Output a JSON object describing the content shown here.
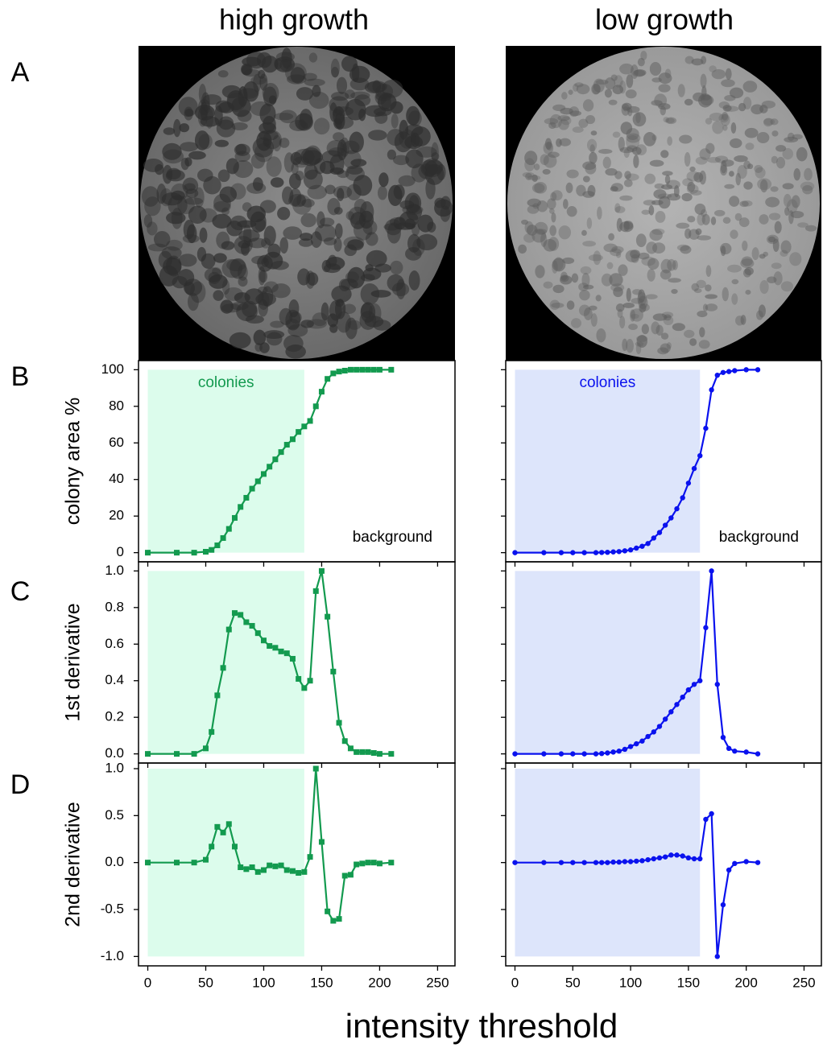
{
  "header": {
    "columns": [
      "high growth",
      "low growth"
    ],
    "panels": [
      "A",
      "B",
      "C",
      "D"
    ],
    "xlabel": "intensity threshold"
  },
  "chart_data": [
    {
      "type": "line",
      "ylabel": "colony area  %",
      "xlim": [
        -8,
        265
      ],
      "ylim": [
        -5,
        105
      ],
      "xticks": [
        0,
        50,
        100,
        150,
        200,
        250
      ],
      "yticks": [
        0,
        20,
        40,
        60,
        80,
        100
      ],
      "xtick_labels": false,
      "ytick_labels": true,
      "marker": "square",
      "shade": {
        "x": [
          0,
          135
        ],
        "y": [
          0,
          100
        ],
        "color": "#dcfcec"
      },
      "shade_label": "colonies",
      "background_label": "background",
      "x": [
        0,
        25,
        40,
        50,
        55,
        60,
        65,
        70,
        75,
        80,
        85,
        90,
        95,
        100,
        105,
        110,
        115,
        120,
        125,
        130,
        135,
        140,
        145,
        150,
        155,
        160,
        165,
        170,
        175,
        180,
        185,
        190,
        195,
        200,
        210
      ],
      "series": [
        {
          "color": "#139a4f",
          "values": [
            0,
            0,
            0,
            0.5,
            1.5,
            4,
            8,
            13,
            19,
            25,
            30,
            35,
            39,
            43,
            47,
            51,
            55,
            59,
            62,
            66,
            69,
            72,
            80,
            88,
            95,
            98,
            99,
            99.5,
            100,
            100,
            100,
            100,
            100,
            100,
            100
          ]
        }
      ]
    },
    {
      "type": "line",
      "xlim": [
        -8,
        265
      ],
      "ylim": [
        -5,
        105
      ],
      "xticks": [
        0,
        50,
        100,
        150,
        200,
        250
      ],
      "yticks": [
        0,
        20,
        40,
        60,
        80,
        100
      ],
      "xtick_labels": false,
      "ytick_labels": false,
      "marker": "circle",
      "shade": {
        "x": [
          0,
          160
        ],
        "y": [
          0,
          100
        ],
        "color": "#dde5fb"
      },
      "shade_label": "colonies",
      "background_label": "background",
      "x": [
        0,
        25,
        40,
        50,
        60,
        70,
        75,
        80,
        85,
        90,
        95,
        100,
        105,
        110,
        115,
        120,
        125,
        130,
        135,
        140,
        145,
        150,
        155,
        160,
        165,
        170,
        175,
        180,
        185,
        190,
        200,
        210
      ],
      "series": [
        {
          "color": "#0a12ee",
          "values": [
            0,
            0,
            0,
            0,
            0,
            0,
            0.1,
            0.2,
            0.4,
            0.6,
            1,
            1.5,
            2.5,
            3.5,
            5,
            8,
            11,
            15,
            19,
            24,
            30,
            38,
            46,
            53,
            68,
            89,
            97,
            98.5,
            99,
            99.5,
            100,
            100
          ]
        }
      ]
    },
    {
      "type": "line",
      "ylabel": "1st derivative",
      "xlim": [
        -8,
        265
      ],
      "ylim": [
        -0.05,
        1.05
      ],
      "xticks": [
        0,
        50,
        100,
        150,
        200,
        250
      ],
      "yticks": [
        {
          "value": 0,
          "label": "0.0"
        },
        0.2,
        0.4,
        0.6,
        0.8,
        {
          "value": 1,
          "label": "1.0"
        }
      ],
      "xtick_labels": false,
      "ytick_labels": true,
      "marker": "square",
      "shade": {
        "x": [
          0,
          135
        ],
        "y": [
          0,
          1
        ],
        "color": "#dcfcec"
      },
      "x": [
        0,
        25,
        40,
        50,
        55,
        60,
        65,
        70,
        75,
        80,
        85,
        90,
        95,
        100,
        105,
        110,
        115,
        120,
        125,
        130,
        135,
        140,
        145,
        150,
        155,
        160,
        165,
        170,
        175,
        180,
        185,
        190,
        195,
        200,
        210
      ],
      "series": [
        {
          "color": "#139a4f",
          "values": [
            0,
            0,
            0,
            0.03,
            0.12,
            0.32,
            0.47,
            0.68,
            0.77,
            0.76,
            0.72,
            0.7,
            0.66,
            0.62,
            0.59,
            0.58,
            0.56,
            0.55,
            0.52,
            0.41,
            0.36,
            0.4,
            0.89,
            1,
            0.75,
            0.45,
            0.17,
            0.07,
            0.03,
            0.01,
            0.01,
            0.01,
            0.005,
            0,
            0
          ]
        }
      ]
    },
    {
      "type": "line",
      "xlim": [
        -8,
        265
      ],
      "ylim": [
        -0.05,
        1.05
      ],
      "xticks": [
        0,
        50,
        100,
        150,
        200,
        250
      ],
      "yticks": [
        {
          "value": 0,
          "label": "0.0"
        },
        0.2,
        0.4,
        0.6,
        0.8,
        {
          "value": 1,
          "label": "1.0"
        }
      ],
      "xtick_labels": false,
      "ytick_labels": false,
      "marker": "circle",
      "shade": {
        "x": [
          0,
          160
        ],
        "y": [
          0,
          1
        ],
        "color": "#dde5fb"
      },
      "x": [
        0,
        25,
        40,
        50,
        60,
        70,
        75,
        80,
        85,
        90,
        95,
        100,
        105,
        110,
        115,
        120,
        125,
        130,
        135,
        140,
        145,
        150,
        155,
        160,
        165,
        170,
        175,
        180,
        185,
        190,
        200,
        210
      ],
      "series": [
        {
          "color": "#0a12ee",
          "values": [
            0,
            0,
            0,
            0,
            0,
            0,
            0.002,
            0.005,
            0.01,
            0.015,
            0.025,
            0.04,
            0.055,
            0.07,
            0.095,
            0.12,
            0.15,
            0.19,
            0.23,
            0.27,
            0.31,
            0.35,
            0.38,
            0.4,
            0.69,
            1,
            0.38,
            0.09,
            0.03,
            0.015,
            0.01,
            0
          ]
        }
      ]
    },
    {
      "type": "line",
      "ylabel": "2nd derivative",
      "xlim": [
        -8,
        265
      ],
      "ylim": [
        -1.1,
        1.06
      ],
      "xticks": [
        0,
        50,
        100,
        150,
        200,
        250
      ],
      "yticks": [
        {
          "value": -1,
          "label": "-1.0"
        },
        -0.5,
        {
          "value": 0,
          "label": "0.0"
        },
        0.5,
        {
          "value": 1,
          "label": "1.0"
        }
      ],
      "xtick_labels": true,
      "ytick_labels": true,
      "marker": "square",
      "shade": {
        "x": [
          0,
          135
        ],
        "y": [
          -1,
          1
        ],
        "color": "#dcfcec"
      },
      "x": [
        0,
        25,
        40,
        50,
        55,
        60,
        65,
        70,
        75,
        80,
        85,
        90,
        95,
        100,
        105,
        110,
        115,
        120,
        125,
        130,
        135,
        140,
        145,
        150,
        155,
        160,
        165,
        170,
        175,
        180,
        185,
        190,
        195,
        200,
        210
      ],
      "series": [
        {
          "color": "#139a4f",
          "values": [
            0,
            0,
            0,
            0.03,
            0.17,
            0.38,
            0.32,
            0.41,
            0.17,
            -0.05,
            -0.07,
            -0.05,
            -0.1,
            -0.08,
            -0.03,
            -0.04,
            -0.03,
            -0.08,
            -0.09,
            -0.11,
            -0.1,
            0.06,
            1,
            0.22,
            -0.52,
            -0.62,
            -0.6,
            -0.14,
            -0.13,
            -0.02,
            -0.01,
            0,
            0,
            -0.01,
            0
          ]
        }
      ]
    },
    {
      "type": "line",
      "xlim": [
        -8,
        265
      ],
      "ylim": [
        -1.1,
        1.06
      ],
      "xticks": [
        0,
        50,
        100,
        150,
        200,
        250
      ],
      "yticks": [
        {
          "value": -1,
          "label": "-1.0"
        },
        -0.5,
        {
          "value": 0,
          "label": "0.0"
        },
        0.5,
        {
          "value": 1,
          "label": "1.0"
        }
      ],
      "xtick_labels": true,
      "ytick_labels": false,
      "marker": "circle",
      "shade": {
        "x": [
          0,
          160
        ],
        "y": [
          -1,
          1
        ],
        "color": "#dde5fb"
      },
      "x": [
        0,
        25,
        40,
        50,
        60,
        70,
        75,
        80,
        85,
        90,
        95,
        100,
        105,
        110,
        115,
        120,
        125,
        130,
        135,
        140,
        145,
        150,
        155,
        160,
        165,
        170,
        175,
        180,
        185,
        190,
        200,
        210
      ],
      "series": [
        {
          "color": "#0a12ee",
          "values": [
            0,
            0,
            0,
            0,
            0,
            0,
            0,
            0,
            0.005,
            0.005,
            0.01,
            0.01,
            0.015,
            0.02,
            0.03,
            0.04,
            0.05,
            0.06,
            0.08,
            0.08,
            0.07,
            0.05,
            0.04,
            0.04,
            0.46,
            0.52,
            -1,
            -0.45,
            -0.08,
            -0.01,
            0.01,
            0
          ]
        }
      ]
    }
  ]
}
